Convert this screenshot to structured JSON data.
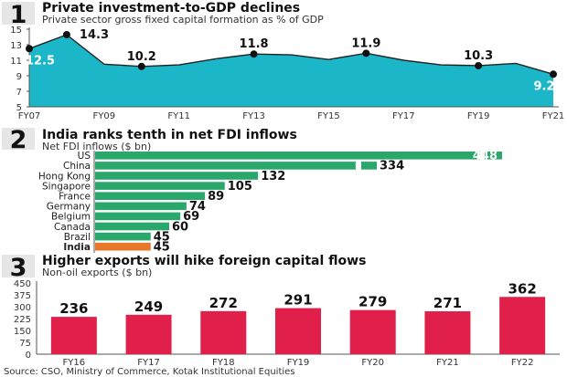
{
  "source": "Source: CSO, Ministry of Commerce, Kotak Institutional Equities",
  "colors": {
    "area": "#1bb7c9",
    "bar_green": "#2aa86b",
    "bar_highlight": "#e9772b",
    "bar_red": "#e0204a",
    "number_box": "#e6e6e6"
  },
  "chart_data": [
    {
      "type": "area",
      "number": "1",
      "title": "Private investment-to-GDP declines",
      "subtitle": "Private sector gross fixed capital formation as % of GDP",
      "x": [
        "FY07",
        "FY08",
        "FY09",
        "FY10",
        "FY11",
        "FY12",
        "FY13",
        "FY14",
        "FY15",
        "FY16",
        "FY17",
        "FY18",
        "FY19",
        "FY20",
        "FY21"
      ],
      "values": [
        12.5,
        14.3,
        10.5,
        10.2,
        10.4,
        11.2,
        11.8,
        11.7,
        11.1,
        11.9,
        11.0,
        10.4,
        10.3,
        10.6,
        9.2
      ],
      "x_tick_labels": [
        "FY07",
        "FY09",
        "FY11",
        "FY13",
        "FY15",
        "FY17",
        "FY19",
        "FY21"
      ],
      "data_labels": [
        {
          "index": 0,
          "text": "12.5",
          "place": "inside"
        },
        {
          "index": 1,
          "text": "14.3",
          "place": "above-right"
        },
        {
          "index": 3,
          "text": "10.2",
          "place": "above"
        },
        {
          "index": 6,
          "text": "11.8",
          "place": "above"
        },
        {
          "index": 9,
          "text": "11.9",
          "place": "above"
        },
        {
          "index": 12,
          "text": "10.3",
          "place": "above"
        },
        {
          "index": 14,
          "text": "9.2",
          "place": "inside"
        }
      ],
      "y_ticks": [
        5,
        7,
        9,
        11,
        13,
        15
      ],
      "ylim": [
        5,
        15
      ],
      "grid": false
    },
    {
      "type": "bar",
      "orientation": "horizontal",
      "number": "2",
      "title": "India ranks tenth in net FDI inflows",
      "subtitle": "Net FDI inflows ($ bn)",
      "categories": [
        "US",
        "China",
        "Hong Kong",
        "Singapore",
        "France",
        "Germany",
        "Belgium",
        "Canada",
        "Brazil",
        "India"
      ],
      "values": [
        448,
        334,
        132,
        105,
        89,
        74,
        69,
        60,
        45,
        45
      ],
      "labels": [
        "448",
        "334",
        "132",
        "105",
        "89",
        "74",
        "69",
        "60",
        "45",
        "45"
      ],
      "highlight": "India",
      "axis_break": true,
      "grid": false
    },
    {
      "type": "bar",
      "number": "3",
      "title": "Higher exports will hike foreign capital flows",
      "subtitle": "Non-oil exports ($ bn)",
      "categories": [
        "FY16",
        "FY17",
        "FY18",
        "FY19",
        "FY20",
        "FY21",
        "FY22"
      ],
      "values": [
        236,
        249,
        272,
        291,
        279,
        271,
        362
      ],
      "y_ticks": [
        0,
        75,
        150,
        225,
        300,
        375,
        450
      ],
      "ylim": [
        0,
        450
      ],
      "grid": false
    }
  ]
}
